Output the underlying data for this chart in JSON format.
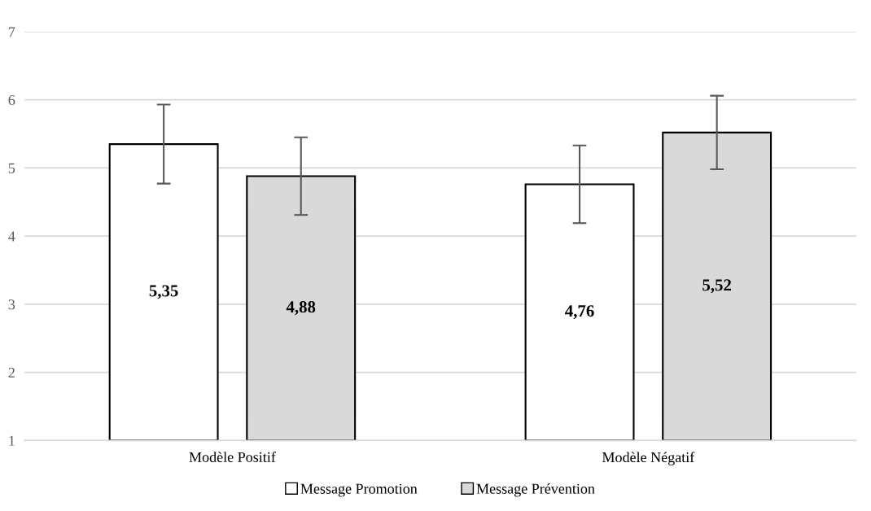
{
  "chart_data": {
    "type": "bar",
    "categories": [
      "Modèle Positif",
      "Modèle Négatif"
    ],
    "series": [
      {
        "name": "Message Promotion",
        "color": "#ffffff",
        "values": [
          5.35,
          4.76
        ],
        "errors": [
          0.58,
          0.57
        ],
        "value_labels": [
          "5,35",
          "4,76"
        ]
      },
      {
        "name": "Message Prévention",
        "color": "#d9d9d9",
        "values": [
          4.88,
          5.52
        ],
        "errors": [
          0.57,
          0.54
        ],
        "value_labels": [
          "4,88",
          "5,52"
        ]
      }
    ],
    "ylim": [
      1,
      7
    ],
    "yticks": [
      1,
      2,
      3,
      4,
      5,
      6,
      7
    ],
    "grid": "y",
    "legend": "bottom"
  }
}
